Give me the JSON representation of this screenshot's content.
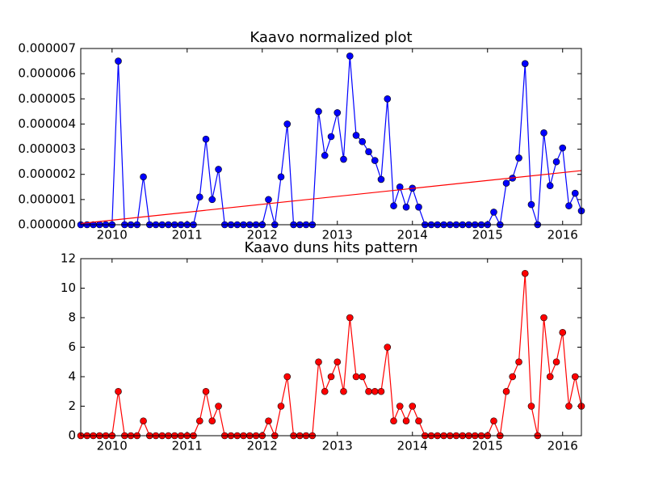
{
  "chart_data": [
    {
      "type": "line",
      "title": "Kaavo normalized plot",
      "x": [
        2009.583,
        2009.667,
        2009.75,
        2009.833,
        2009.917,
        2010,
        2010.083,
        2010.167,
        2010.25,
        2010.333,
        2010.417,
        2010.5,
        2010.583,
        2010.667,
        2010.75,
        2010.833,
        2010.917,
        2011,
        2011.083,
        2011.167,
        2011.25,
        2011.333,
        2011.417,
        2011.5,
        2011.583,
        2011.667,
        2011.75,
        2011.833,
        2011.917,
        2012,
        2012.083,
        2012.167,
        2012.25,
        2012.333,
        2012.417,
        2012.5,
        2012.583,
        2012.667,
        2012.75,
        2012.833,
        2012.917,
        2013,
        2013.083,
        2013.167,
        2013.25,
        2013.333,
        2013.417,
        2013.5,
        2013.583,
        2013.667,
        2013.75,
        2013.833,
        2013.917,
        2014,
        2014.083,
        2014.167,
        2014.25,
        2014.333,
        2014.417,
        2014.5,
        2014.583,
        2014.667,
        2014.75,
        2014.833,
        2014.917,
        2015,
        2015.083,
        2015.167,
        2015.25,
        2015.333,
        2015.417,
        2015.5,
        2015.583,
        2015.667,
        2015.75,
        2015.833,
        2015.917,
        2016,
        2016.083,
        2016.167,
        2016.25
      ],
      "series": [
        {
          "color": "#0000ff",
          "marker": "o",
          "values": [
            0,
            0,
            0,
            0,
            0,
            0,
            6.5e-06,
            0,
            0,
            0,
            1.9e-06,
            0,
            0,
            0,
            0,
            0,
            0,
            0,
            0,
            1.1e-06,
            3.4e-06,
            1e-06,
            2.2e-06,
            0,
            0,
            0,
            0,
            0,
            0,
            0,
            1e-06,
            0,
            1.9e-06,
            4e-06,
            0,
            0,
            0,
            0,
            4.5e-06,
            2.75e-06,
            3.5e-06,
            4.45e-06,
            2.6e-06,
            6.7e-06,
            3.55e-06,
            3.3e-06,
            2.9e-06,
            2.55e-06,
            1.8e-06,
            5e-06,
            7.5e-07,
            1.5e-06,
            7e-07,
            1.45e-06,
            7e-07,
            0,
            0,
            0,
            0,
            0,
            0,
            0,
            0,
            0,
            0,
            0,
            5e-07,
            0,
            1.65e-06,
            1.85e-06,
            2.65e-06,
            6.4e-06,
            8e-07,
            0,
            3.65e-06,
            1.55e-06,
            2.5e-06,
            3.05e-06,
            7.5e-07,
            1.25e-06,
            5.5e-07
          ]
        },
        {
          "color": "#ff0000",
          "x": [
            2009.583,
            2016.25
          ],
          "values": [
            5e-08,
            2.15e-06
          ]
        }
      ],
      "xlim": [
        2009.583,
        2016.25
      ],
      "xticks": [
        2010,
        2011,
        2012,
        2013,
        2014,
        2015,
        2016
      ],
      "ylim": [
        0,
        7e-06
      ],
      "yticks": [
        {
          "value": 0,
          "label": "0.000000"
        },
        {
          "value": 1e-06,
          "label": "0.000001"
        },
        {
          "value": 2e-06,
          "label": "0.000002"
        },
        {
          "value": 3e-06,
          "label": "0.000003"
        },
        {
          "value": 4e-06,
          "label": "0.000004"
        },
        {
          "value": 5e-06,
          "label": "0.000005"
        },
        {
          "value": 6e-06,
          "label": "0.000006"
        },
        {
          "value": 7e-06,
          "label": "0.000007"
        }
      ]
    },
    {
      "type": "line",
      "title": "Kaavo duns hits pattern",
      "x": [
        2009.583,
        2009.667,
        2009.75,
        2009.833,
        2009.917,
        2010,
        2010.083,
        2010.167,
        2010.25,
        2010.333,
        2010.417,
        2010.5,
        2010.583,
        2010.667,
        2010.75,
        2010.833,
        2010.917,
        2011,
        2011.083,
        2011.167,
        2011.25,
        2011.333,
        2011.417,
        2011.5,
        2011.583,
        2011.667,
        2011.75,
        2011.833,
        2011.917,
        2012,
        2012.083,
        2012.167,
        2012.25,
        2012.333,
        2012.417,
        2012.5,
        2012.583,
        2012.667,
        2012.75,
        2012.833,
        2012.917,
        2013,
        2013.083,
        2013.167,
        2013.25,
        2013.333,
        2013.417,
        2013.5,
        2013.583,
        2013.667,
        2013.75,
        2013.833,
        2013.917,
        2014,
        2014.083,
        2014.167,
        2014.25,
        2014.333,
        2014.417,
        2014.5,
        2014.583,
        2014.667,
        2014.75,
        2014.833,
        2014.917,
        2015,
        2015.083,
        2015.167,
        2015.25,
        2015.333,
        2015.417,
        2015.5,
        2015.583,
        2015.667,
        2015.75,
        2015.833,
        2015.917,
        2016,
        2016.083,
        2016.167,
        2016.25
      ],
      "series": [
        {
          "color": "#ff0000",
          "marker": "o",
          "values": [
            0,
            0,
            0,
            0,
            0,
            0,
            3,
            0,
            0,
            0,
            1,
            0,
            0,
            0,
            0,
            0,
            0,
            0,
            0,
            1,
            3,
            1,
            2,
            0,
            0,
            0,
            0,
            0,
            0,
            0,
            1,
            0,
            2,
            4,
            0,
            0,
            0,
            0,
            5,
            3,
            4,
            5,
            3,
            8,
            4,
            4,
            3,
            3,
            3,
            6,
            1,
            2,
            1,
            2,
            1,
            0,
            0,
            0,
            0,
            0,
            0,
            0,
            0,
            0,
            0,
            0,
            1,
            0,
            3,
            4,
            5,
            11,
            2,
            0,
            8,
            4,
            5,
            7,
            2,
            4,
            2
          ]
        }
      ],
      "xlim": [
        2009.583,
        2016.25
      ],
      "xticks": [
        2010,
        2011,
        2012,
        2013,
        2014,
        2015,
        2016
      ],
      "ylim": [
        0,
        12
      ],
      "yticks": [
        0,
        2,
        4,
        6,
        8,
        10,
        12
      ]
    }
  ]
}
